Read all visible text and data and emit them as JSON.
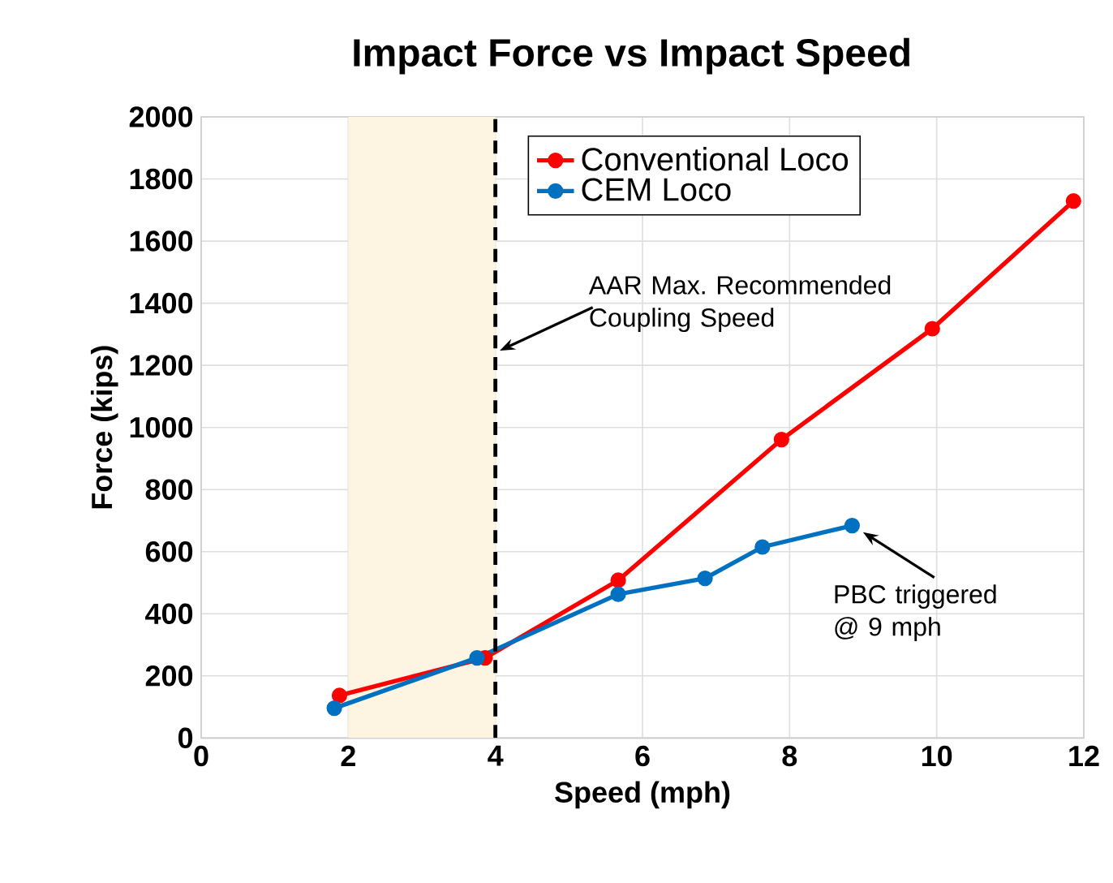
{
  "chart_data": {
    "type": "line",
    "title": "Impact Force vs Impact Speed",
    "xlabel": "Speed (mph)",
    "ylabel": "Force (kips)",
    "xlim": [
      0,
      12
    ],
    "ylim": [
      0,
      2000
    ],
    "xticks": [
      0,
      2,
      4,
      6,
      8,
      10,
      12
    ],
    "yticks": [
      0,
      200,
      400,
      600,
      800,
      1000,
      1200,
      1400,
      1600,
      1800,
      2000
    ],
    "grid": true,
    "legend": "top",
    "marker": "circle",
    "line_style": "solid",
    "series": [
      {
        "name": "Conventional Loco",
        "color": "#ff0000",
        "x": [
          1.88,
          3.86,
          5.67,
          7.89,
          9.94,
          11.86
        ],
        "values": [
          137,
          258,
          508,
          961,
          1318,
          1729
        ]
      },
      {
        "name": "CEM Loco",
        "color": "#0070c0",
        "x": [
          1.81,
          3.75,
          5.67,
          6.85,
          7.63,
          8.85
        ],
        "values": [
          96,
          258,
          463,
          514,
          615,
          684
        ]
      }
    ],
    "bands": [
      {
        "axis": "x",
        "from": 2,
        "to": 4,
        "color": "#fdf5e2"
      }
    ],
    "ref_lines": [
      {
        "axis": "x",
        "value": 4,
        "label": "AAR Max. Recommended Coupling Speed",
        "color": "#000000",
        "line_style": "dashed"
      }
    ],
    "annotations": [
      {
        "text": "PBC triggered @ 9 mph",
        "x": 8.85,
        "y": 684
      }
    ]
  }
}
